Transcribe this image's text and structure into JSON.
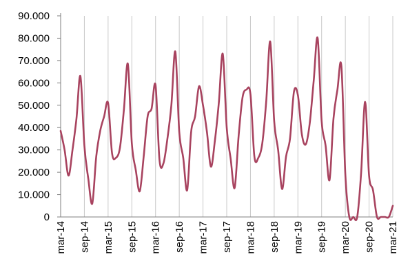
{
  "chart_data": {
    "type": "line",
    "title": "",
    "xlabel": "",
    "ylabel": "",
    "x_tick_labels": [
      "mar-14",
      "sep-14",
      "mar-15",
      "sep-15",
      "mar-16",
      "sep-16",
      "mar-17",
      "sep-17",
      "mar-18",
      "sep-18",
      "mar-19",
      "sep-19",
      "mar-20",
      "sep-20",
      "mar-21"
    ],
    "y_tick_labels": [
      "0",
      "10.000",
      "20.000",
      "30.000",
      "40.000",
      "50.000",
      "60.000",
      "70.000",
      "80.000",
      "90.000"
    ],
    "ylim": [
      0,
      90000
    ],
    "x_range": [
      "2014-03",
      "2021-03"
    ],
    "grid": "vertical",
    "legend": "none",
    "series": [
      {
        "color": "#a8435f",
        "x": [
          "2014-03",
          "2014-04",
          "2014-05",
          "2014-06",
          "2014-07",
          "2014-08",
          "2014-09",
          "2014-10",
          "2014-11",
          "2014-12",
          "2015-01",
          "2015-02",
          "2015-03",
          "2015-04",
          "2015-05",
          "2015-06",
          "2015-07",
          "2015-08",
          "2015-09",
          "2015-10",
          "2015-11",
          "2015-12",
          "2016-01",
          "2016-02",
          "2016-03",
          "2016-04",
          "2016-05",
          "2016-06",
          "2016-07",
          "2016-08",
          "2016-09",
          "2016-10",
          "2016-11",
          "2016-12",
          "2017-01",
          "2017-02",
          "2017-03",
          "2017-04",
          "2017-05",
          "2017-06",
          "2017-07",
          "2017-08",
          "2017-09",
          "2017-10",
          "2017-11",
          "2017-12",
          "2018-01",
          "2018-02",
          "2018-03",
          "2018-04",
          "2018-05",
          "2018-06",
          "2018-07",
          "2018-08",
          "2018-09",
          "2018-10",
          "2018-11",
          "2018-12",
          "2019-01",
          "2019-02",
          "2019-03",
          "2019-04",
          "2019-05",
          "2019-06",
          "2019-07",
          "2019-08",
          "2019-09",
          "2019-10",
          "2019-11",
          "2019-12",
          "2020-01",
          "2020-02",
          "2020-03",
          "2020-04",
          "2020-05",
          "2020-06",
          "2020-07",
          "2020-08",
          "2020-09",
          "2020-10",
          "2020-11",
          "2020-12",
          "2021-01",
          "2021-02",
          "2021-03"
        ],
        "values": [
          38500,
          30000,
          18500,
          30000,
          44000,
          63000,
          32000,
          17000,
          6000,
          27000,
          38500,
          45000,
          51000,
          28500,
          26500,
          31000,
          48000,
          68500,
          33000,
          21000,
          11500,
          27000,
          45000,
          48500,
          59000,
          25500,
          24000,
          35000,
          50000,
          74000,
          38000,
          26500,
          12000,
          38000,
          45000,
          58500,
          50000,
          38000,
          22500,
          34000,
          51000,
          73000,
          40000,
          26000,
          13000,
          36000,
          53500,
          57000,
          55000,
          27000,
          26500,
          33000,
          52000,
          78500,
          43000,
          30000,
          12500,
          27000,
          35000,
          56000,
          54500,
          37000,
          32500,
          42000,
          61000,
          80000,
          43000,
          32000,
          16500,
          44000,
          57000,
          67500,
          19000,
          0,
          0,
          0,
          20000,
          51500,
          18500,
          12000,
          0,
          0,
          0,
          0,
          5000
        ]
      }
    ]
  }
}
